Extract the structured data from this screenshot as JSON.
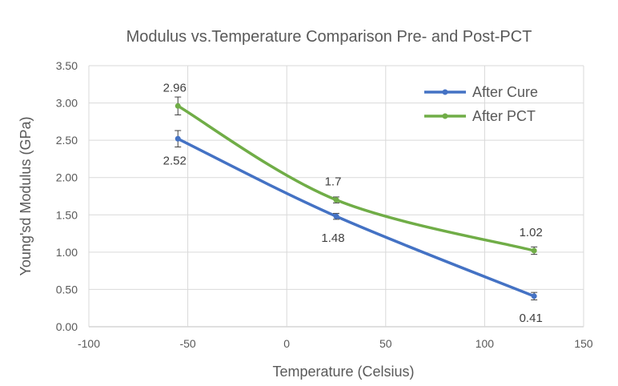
{
  "chart_data": {
    "type": "line",
    "title": "Modulus vs.Temperature Comparison Pre- and Post-PCT",
    "xlabel": "Temperature (Celsius)",
    "ylabel": "Young'sd Modulus (GPa)",
    "xlim": [
      -100,
      150
    ],
    "ylim": [
      0,
      3.5
    ],
    "x_ticks": [
      -100,
      -50,
      0,
      50,
      100,
      150
    ],
    "x_tick_labels": [
      "-100",
      "-50",
      "0",
      "50",
      "100",
      "150"
    ],
    "y_ticks": [
      0,
      0.5,
      1,
      1.5,
      2,
      2.5,
      3,
      3.5
    ],
    "y_tick_labels": [
      "0.00",
      "0.50",
      "1.00",
      "1.50",
      "2.00",
      "2.50",
      "3.00",
      "3.50"
    ],
    "grid": true,
    "smooth": true,
    "legend_position": "top-right",
    "series": [
      {
        "name": "After Cure",
        "color": "#4472c4",
        "x": [
          -55,
          25,
          125
        ],
        "y": [
          2.52,
          1.48,
          0.41
        ],
        "error": [
          0.11,
          0.04,
          0.05
        ],
        "labels": [
          "2.52",
          "1.48",
          "0.41"
        ],
        "label_position": "below"
      },
      {
        "name": "After PCT",
        "color": "#70ad47",
        "x": [
          -55,
          25,
          125
        ],
        "y": [
          2.96,
          1.7,
          1.02
        ],
        "error": [
          0.12,
          0.04,
          0.05
        ],
        "labels": [
          "2.96",
          "1.7",
          "1.02"
        ],
        "label_position": "above"
      }
    ]
  }
}
